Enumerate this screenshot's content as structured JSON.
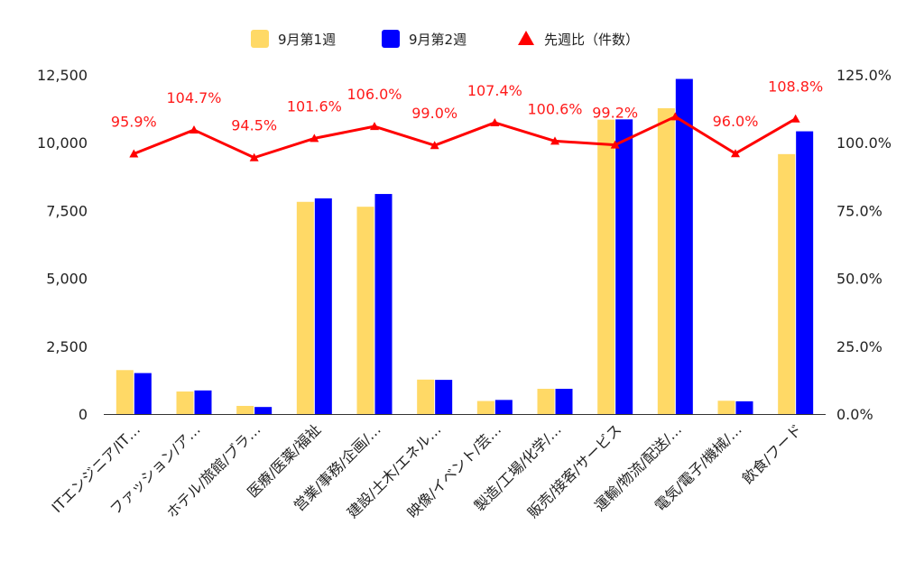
{
  "chart_data": {
    "type": "bar",
    "categories": [
      "ITエンジニア/IT…",
      "ファッション/ア…",
      "ホテル/旅館/ブラ…",
      "医療/医薬/福祉",
      "営業/事務/企画/…",
      "建設/土木/エネル…",
      "映像/イベント/芸…",
      "製造/工場/化学/…",
      "販売/接客/サービス",
      "運輸/物流/配送/…",
      "電気/電子/機械/…",
      "飲食/フード"
    ],
    "series": [
      {
        "name": "9月第1週",
        "type": "bar",
        "axis": "left",
        "color": "#ffd966",
        "values": [
          1620,
          830,
          300,
          7820,
          7640,
          1270,
          480,
          930,
          10850,
          11270,
          490,
          9580
        ]
      },
      {
        "name": "9月第2週",
        "type": "bar",
        "axis": "left",
        "color": "#0000ff",
        "values": [
          1510,
          870,
          260,
          7950,
          8110,
          1260,
          520,
          930,
          10860,
          12350,
          470,
          10420
        ]
      },
      {
        "name": "先週比（件数）",
        "type": "line",
        "axis": "right",
        "color": "#ff0000",
        "values": [
          95.9,
          104.7,
          94.5,
          101.6,
          106.0,
          99.0,
          107.4,
          100.6,
          99.2,
          109.6,
          96.0,
          108.8
        ],
        "labels": [
          "95.9%",
          "104.7%",
          "94.5%",
          "101.6%",
          "106.0%",
          "99.0%",
          "107.4%",
          "100.6%",
          "99.2%",
          "",
          "96.0%",
          "108.8%"
        ]
      }
    ],
    "y_left": {
      "ylim": [
        0,
        12500
      ],
      "ticks": [
        "0",
        "2,500",
        "5,000",
        "7,500",
        "10,000",
        "12,500"
      ]
    },
    "y_right": {
      "ylim": [
        0,
        125
      ],
      "ticks": [
        "0.0%",
        "25.0%",
        "50.0%",
        "75.0%",
        "100.0%",
        "125.0%"
      ]
    },
    "legend_position": "top-center",
    "grid": false
  }
}
